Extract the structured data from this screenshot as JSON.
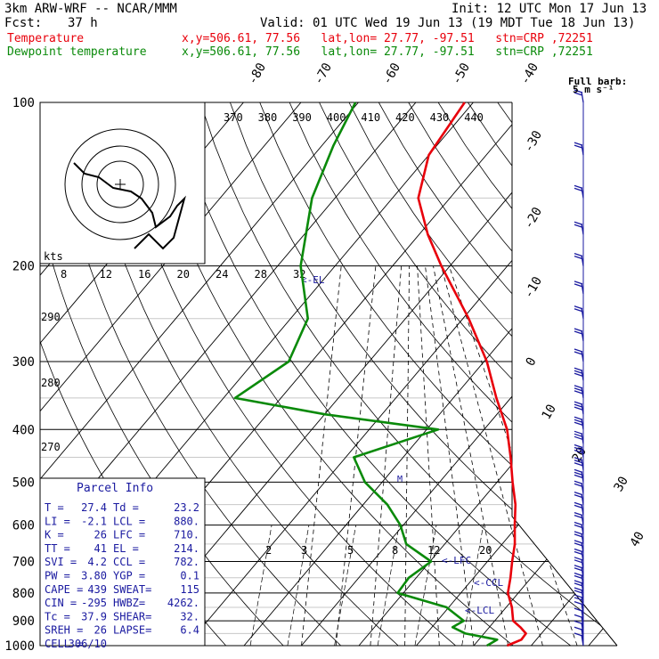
{
  "header": {
    "model": "3km ARW-WRF -- NCAR/MMM",
    "init": "Init: 12 UTC Mon 17 Jun 13",
    "fcst_label": "Fcst:",
    "fcst_value": "37 h",
    "valid": "Valid: 01 UTC Wed 19 Jun 13 (19 MDT Tue 18 Jun 13)",
    "temp_label": "Temperature",
    "temp_info": "x,y=506.61, 77.56   lat,lon= 27.77, -97.51   stn=CRP ,72251",
    "dew_label": "Dewpoint temperature",
    "dew_info": "x,y=506.61, 77.56   lat,lon= 27.77, -97.51   stn=CRP ,72251"
  },
  "chart_data": {
    "type": "line",
    "title": "",
    "colors": {
      "temperature": "#e8000b",
      "dewpoint": "#0a8a0a",
      "barbs": "#1a1aa0",
      "dry_adiabat": "#000000"
    },
    "pressure_labels": [
      "100",
      "200",
      "300",
      "400",
      "500",
      "600",
      "700",
      "800",
      "900",
      "1000"
    ],
    "skewed_temp_labels": [
      "-80",
      "-70",
      "-60",
      "-50",
      "-40",
      "-30",
      "-20",
      "-10",
      "0",
      "10",
      "20",
      "30",
      "40"
    ],
    "theta_e_labels": [
      "370",
      "380",
      "390",
      "400",
      "410",
      "420",
      "430",
      "440"
    ],
    "mixing_ratio_labels": [
      "2",
      "3",
      "5",
      "8",
      "12",
      "20"
    ],
    "hodograph_kts_label": "kts",
    "hodograph_speed_labels": [
      "8",
      "12",
      "16",
      "20",
      "24",
      "28",
      "32"
    ],
    "dry_adiabat_labels": [
      "290",
      "280",
      "270"
    ],
    "level_markers": [
      "<-EL",
      "<-LFC",
      "<-CCL",
      "<-LCL"
    ],
    "barb_label": "Full barb:\n5 m s⁻¹",
    "series": [
      {
        "name": "Temperature",
        "values": [
          [
            1000,
            25.8
          ],
          [
            975,
            27.4
          ],
          [
            950,
            27.3
          ],
          [
            925,
            25.4
          ],
          [
            900,
            23.2
          ],
          [
            850,
            21.0
          ],
          [
            800,
            18.2
          ],
          [
            750,
            16.4
          ],
          [
            700,
            14.3
          ],
          [
            650,
            12.2
          ],
          [
            600,
            9.4
          ],
          [
            550,
            6.5
          ],
          [
            500,
            2.7
          ],
          [
            450,
            -1.3
          ],
          [
            400,
            -6.0
          ],
          [
            350,
            -12.5
          ],
          [
            300,
            -19.5
          ],
          [
            250,
            -29.0
          ],
          [
            200,
            -41.5
          ],
          [
            175,
            -48.5
          ],
          [
            150,
            -55.5
          ],
          [
            125,
            -60.0
          ],
          [
            100,
            -61.5
          ]
        ]
      },
      {
        "name": "Dewpoint temperature",
        "values": [
          [
            1000,
            22.3
          ],
          [
            975,
            23.2
          ],
          [
            950,
            16.8
          ],
          [
            925,
            13.6
          ],
          [
            900,
            14.6
          ],
          [
            850,
            9.6
          ],
          [
            800,
            -1.0
          ],
          [
            750,
            -1.3
          ],
          [
            700,
            0.2
          ],
          [
            650,
            -6.7
          ],
          [
            600,
            -10.5
          ],
          [
            550,
            -15.8
          ],
          [
            500,
            -23.0
          ],
          [
            450,
            -28.6
          ],
          [
            400,
            -18.0
          ],
          [
            375,
            -40.0
          ],
          [
            350,
            -58.0
          ],
          [
            300,
            -54.0
          ],
          [
            250,
            -57.0
          ],
          [
            200,
            -66.0
          ],
          [
            150,
            -74.0
          ],
          [
            120,
            -78.0
          ],
          [
            100,
            -80.5
          ]
        ]
      }
    ],
    "hodograph": [
      [
        -13,
        6
      ],
      [
        -10,
        3
      ],
      [
        -6,
        2
      ],
      [
        -2,
        -1
      ],
      [
        3,
        -2
      ],
      [
        6,
        -4
      ],
      [
        9,
        -8
      ],
      [
        10,
        -12
      ],
      [
        14,
        -9
      ],
      [
        16,
        -6
      ],
      [
        18,
        -4
      ],
      [
        15,
        -15
      ],
      [
        12,
        -18
      ],
      [
        8,
        -14
      ],
      [
        4,
        -18
      ]
    ]
  },
  "parcel": {
    "title": "Parcel Info",
    "rows": [
      [
        "T  =",
        "27.4",
        "Td =",
        "23.2"
      ],
      [
        "LI =",
        "-2.1",
        "LCL =",
        "880."
      ],
      [
        "K  =",
        "26",
        "LFC =",
        "710."
      ],
      [
        "TT =",
        "41",
        "EL =",
        "214."
      ],
      [
        "SVI =",
        "4.2",
        "CCL =",
        "782."
      ],
      [
        "PW =",
        "3.80",
        "YGP =",
        "0.1"
      ],
      [
        "CAPE =",
        "439",
        "SWEAT=",
        "115"
      ],
      [
        "CIN =",
        "-295",
        "HWBZ=",
        "4262."
      ],
      [
        "Tc =",
        "37.9",
        "SHEAR=",
        "32."
      ],
      [
        "SREH =",
        "26",
        "LAPSE=",
        "6.4"
      ],
      [
        "CELL =",
        "306/10",
        "",
        ""
      ]
    ]
  }
}
